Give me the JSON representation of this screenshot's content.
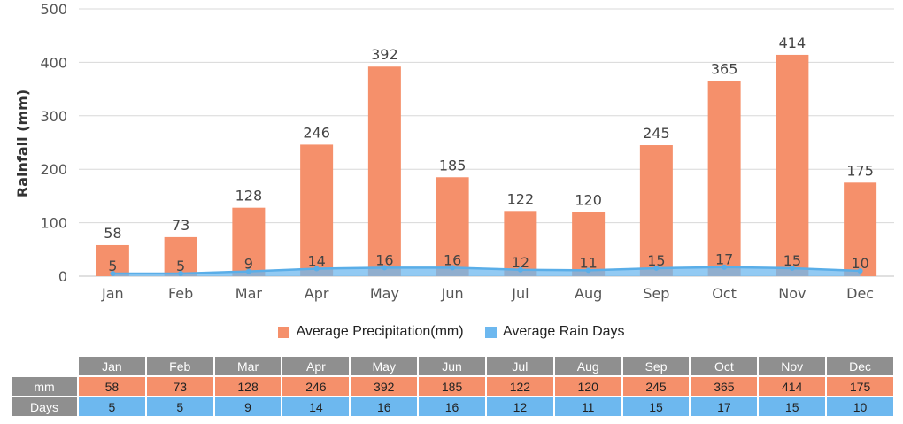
{
  "chart_data": {
    "type": "bar",
    "categories": [
      "Jan",
      "Feb",
      "Mar",
      "Apr",
      "May",
      "Jun",
      "Jul",
      "Aug",
      "Sep",
      "Oct",
      "Nov",
      "Dec"
    ],
    "series": [
      {
        "name": "Average Precipitation(mm)",
        "kind": "bar",
        "color": "#f5906b",
        "values": [
          58,
          73,
          128,
          246,
          392,
          185,
          122,
          120,
          245,
          365,
          414,
          175
        ]
      },
      {
        "name": "Average Rain Days",
        "kind": "area-line",
        "color": "#6db8ef",
        "values": [
          5,
          5,
          9,
          14,
          16,
          16,
          12,
          11,
          15,
          17,
          15,
          10
        ]
      }
    ],
    "ylabel": "Rainfall (mm)",
    "xlabel": "",
    "ylim": [
      0,
      500
    ],
    "yticks": [
      0,
      100,
      200,
      300,
      400,
      500
    ],
    "grid": true,
    "legend_position": "bottom-center"
  },
  "table": {
    "row_labels": {
      "mm": "mm",
      "days": "Days"
    }
  }
}
